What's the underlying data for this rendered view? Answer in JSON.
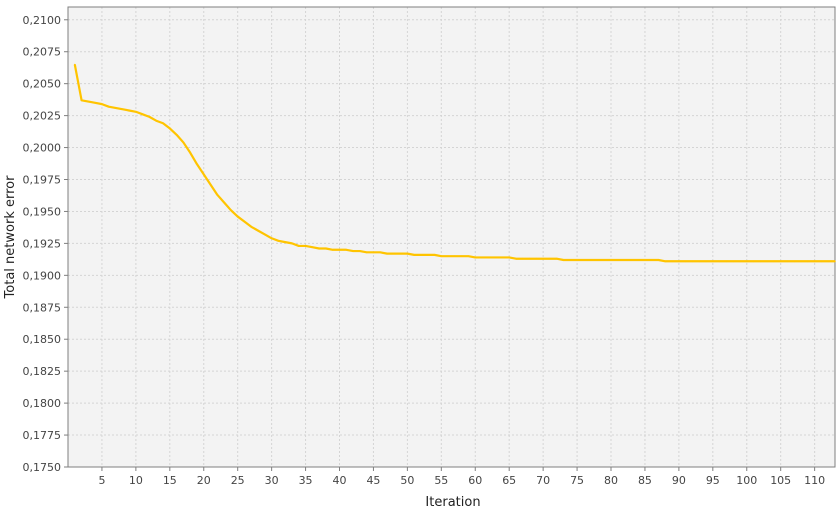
{
  "colors": {
    "line": "#ffc400",
    "plot_bg": "#f3f3f3",
    "grid": "#d4d4d4",
    "axis": "#7f7f7f"
  },
  "chart_data": {
    "type": "line",
    "xlabel": "Iteration",
    "ylabel": "Total network error",
    "xlim": [
      0,
      113
    ],
    "ylim": [
      0.175,
      0.211
    ],
    "grid": true,
    "x_ticks": [
      5,
      10,
      15,
      20,
      25,
      30,
      35,
      40,
      45,
      50,
      55,
      60,
      65,
      70,
      75,
      80,
      85,
      90,
      95,
      100,
      105,
      110
    ],
    "x_tick_labels": [
      "5",
      "10",
      "15",
      "20",
      "25",
      "30",
      "35",
      "40",
      "45",
      "50",
      "55",
      "60",
      "65",
      "70",
      "75",
      "80",
      "85",
      "90",
      "95",
      "100",
      "105",
      "110"
    ],
    "y_ticks": [
      0.175,
      0.1775,
      0.18,
      0.1825,
      0.185,
      0.1875,
      0.19,
      0.1925,
      0.195,
      0.1975,
      0.2,
      0.2025,
      0.205,
      0.2075,
      0.21
    ],
    "y_tick_labels": [
      "0,1750",
      "0,1775",
      "0,1800",
      "0,1825",
      "0,1850",
      "0,1875",
      "0,1900",
      "0,1925",
      "0,1950",
      "0,1975",
      "0,2000",
      "0,2025",
      "0,2050",
      "0,2075",
      "0,2100"
    ],
    "series": [
      {
        "x": [
          1,
          2,
          3,
          4,
          5,
          6,
          7,
          8,
          9,
          10,
          11,
          12,
          13,
          14,
          15,
          16,
          17,
          18,
          19,
          20,
          21,
          22,
          23,
          24,
          25,
          26,
          27,
          28,
          29,
          30,
          31,
          32,
          33,
          34,
          35,
          36,
          37,
          38,
          39,
          40,
          41,
          42,
          43,
          44,
          45,
          46,
          47,
          48,
          49,
          50,
          51,
          52,
          53,
          54,
          55,
          56,
          57,
          58,
          59,
          60,
          61,
          62,
          63,
          64,
          65,
          66,
          67,
          68,
          69,
          70,
          71,
          72,
          73,
          74,
          75,
          76,
          77,
          78,
          79,
          80,
          81,
          82,
          83,
          84,
          85,
          86,
          87,
          88,
          89,
          90,
          91,
          92,
          93,
          94,
          95,
          96,
          97,
          98,
          99,
          100,
          101,
          102,
          103,
          104,
          105,
          106,
          107,
          108,
          109,
          110,
          111,
          112,
          113
        ],
        "values": [
          0.2065,
          0.2037,
          0.2036,
          0.2035,
          0.2034,
          0.2032,
          0.2031,
          0.203,
          0.2029,
          0.2028,
          0.2026,
          0.2024,
          0.2021,
          0.2019,
          0.2015,
          0.201,
          0.2004,
          0.1996,
          0.1987,
          0.1979,
          0.1971,
          0.1963,
          0.1957,
          0.1951,
          0.1946,
          0.1942,
          0.1938,
          0.1935,
          0.1932,
          0.1929,
          0.1927,
          0.1926,
          0.1925,
          0.1923,
          0.1923,
          0.1922,
          0.1921,
          0.1921,
          0.192,
          0.192,
          0.192,
          0.1919,
          0.1919,
          0.1918,
          0.1918,
          0.1918,
          0.1917,
          0.1917,
          0.1917,
          0.1917,
          0.1916,
          0.1916,
          0.1916,
          0.1916,
          0.1915,
          0.1915,
          0.1915,
          0.1915,
          0.1915,
          0.1914,
          0.1914,
          0.1914,
          0.1914,
          0.1914,
          0.1914,
          0.1913,
          0.1913,
          0.1913,
          0.1913,
          0.1913,
          0.1913,
          0.1913,
          0.1912,
          0.1912,
          0.1912,
          0.1912,
          0.1912,
          0.1912,
          0.1912,
          0.1912,
          0.1912,
          0.1912,
          0.1912,
          0.1912,
          0.1912,
          0.1912,
          0.1912,
          0.1911,
          0.1911,
          0.1911,
          0.1911,
          0.1911,
          0.1911,
          0.1911,
          0.1911,
          0.1911,
          0.1911,
          0.1911,
          0.1911,
          0.1911,
          0.1911,
          0.1911,
          0.1911,
          0.1911,
          0.1911,
          0.1911,
          0.1911,
          0.1911,
          0.1911,
          0.1911,
          0.1911,
          0.1911,
          0.1911
        ]
      }
    ]
  }
}
